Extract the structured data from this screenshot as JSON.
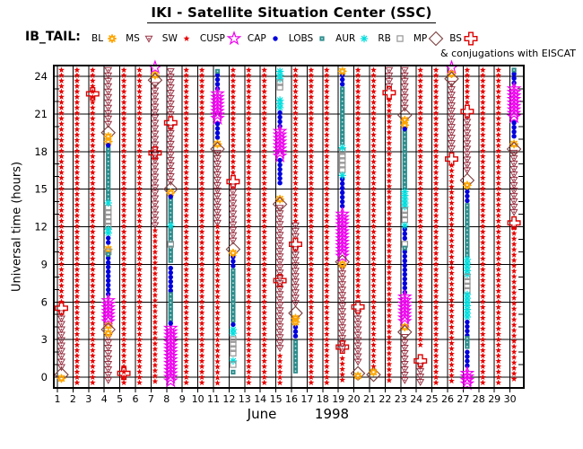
{
  "title": "IKI - Satellite Situation Center (SSC)",
  "legend": {
    "group_label": "IB_TAIL:",
    "note": "& conjugations with EISCAT",
    "items": [
      {
        "label": "BL",
        "key": "BL"
      },
      {
        "label": "MS",
        "key": "MS"
      },
      {
        "label": "SW",
        "key": "SW"
      },
      {
        "label": "CUSP",
        "key": "CUSP"
      },
      {
        "label": "CAP",
        "key": "CAP"
      },
      {
        "label": "LOBS",
        "key": "LOBS"
      },
      {
        "label": "AUR",
        "key": "AUR"
      },
      {
        "label": "RB",
        "key": "RB"
      },
      {
        "label": "MP",
        "key": "MP"
      },
      {
        "label": "BS",
        "key": "BS"
      }
    ]
  },
  "colors": {
    "BL": "#ffa500",
    "MS": "#993344",
    "SW": "#e60000",
    "CUSP": "#ee00ee",
    "CAP": "#0000dd",
    "LOBS": "#2e8b8b",
    "AUR": "#00dddd",
    "RB": "#959595",
    "MP": "#7d4040",
    "BS": "#dd0000",
    "grid": "#000000",
    "lobs_center": "#bfe8e8"
  },
  "chart_data": {
    "type": "scatter",
    "title": "IKI - Satellite Situation Center (SSC)",
    "xlabel_month": "June",
    "xlabel_year": "1998",
    "ylabel": "Universal time (hours)",
    "x_ticks": [
      1,
      2,
      3,
      4,
      5,
      6,
      7,
      8,
      9,
      10,
      11,
      12,
      13,
      14,
      15,
      16,
      17,
      18,
      19,
      20,
      21,
      22,
      23,
      24,
      25,
      26,
      27,
      28,
      29,
      30
    ],
    "y_ticks": [
      0,
      3,
      6,
      9,
      12,
      15,
      18,
      21,
      24
    ],
    "ylim": [
      -0.9,
      24.9
    ],
    "grid": true,
    "legend_position": "top",
    "series_note": "Per day-of-June-1998 region segments: [region, start_hour, end_hour] = symbol run, [region, hour] = single marker",
    "days": [
      {
        "day": 1,
        "segments": [
          [
            "SW",
            24.5,
            5.9
          ],
          [
            "MS",
            5.1,
            0.5
          ],
          [
            "BS",
            5.5
          ],
          [
            "MP",
            0.2
          ],
          [
            "BL",
            -0.1
          ]
        ]
      },
      {
        "day": 2,
        "segments": [
          [
            "SW",
            24.5,
            -0.5
          ]
        ]
      },
      {
        "day": 3,
        "segments": [
          [
            "SW",
            24.5,
            -0.5
          ],
          [
            "BS",
            22.6
          ]
        ]
      },
      {
        "day": 4,
        "segments": [
          [
            "MS",
            24.5,
            19.8
          ],
          [
            "MP",
            19.5
          ],
          [
            "BL",
            19.2
          ],
          [
            "BL",
            18.8
          ],
          [
            "CAP",
            18.5
          ],
          [
            "LOBS",
            18.2,
            14.2
          ],
          [
            "AUR",
            13.9
          ],
          [
            "RB",
            13.5,
            12.0
          ],
          [
            "AUR",
            11.8,
            11.4
          ],
          [
            "CAP",
            11.1,
            10.5
          ],
          [
            "BL",
            10.2
          ],
          [
            "RB",
            10.0
          ],
          [
            "LOBS",
            9.8
          ],
          [
            "CAP",
            9.5,
            6.4
          ],
          [
            "CUSP",
            6.1,
            4.4
          ],
          [
            "BL",
            4.1
          ],
          [
            "MP",
            3.8
          ],
          [
            "BL",
            3.5
          ],
          [
            "MS",
            3.2,
            -0.4
          ]
        ]
      },
      {
        "day": 5,
        "segments": [
          [
            "SW",
            24.5,
            -0.5
          ],
          [
            "BS",
            0.3
          ]
        ]
      },
      {
        "day": 6,
        "segments": [
          [
            "SW",
            24.5,
            -0.5
          ]
        ]
      },
      {
        "day": 7,
        "segments": [
          [
            "MS",
            23.3,
            12.1
          ],
          [
            "SW",
            11.7,
            -0.5
          ],
          [
            "CUSP",
            24.7
          ],
          [
            "BL",
            24.1
          ],
          [
            "MP",
            23.7
          ],
          [
            "BS",
            17.9
          ]
        ]
      },
      {
        "day": 8,
        "segments": [
          [
            "MS",
            24.4,
            20.7
          ],
          [
            "MS",
            19.9,
            15.3
          ],
          [
            "BS",
            20.3
          ],
          [
            "MP",
            15.0
          ],
          [
            "BL",
            14.7
          ],
          [
            "CAP",
            14.4
          ],
          [
            "LOBS",
            14.1,
            12.4
          ],
          [
            "AUR",
            12.1
          ],
          [
            "LOBS",
            11.9,
            10.9
          ],
          [
            "RB",
            10.6
          ],
          [
            "LOBS",
            10.3,
            9.0
          ],
          [
            "CAP",
            8.7,
            6.9
          ],
          [
            "LOBS",
            6.6,
            4.6
          ],
          [
            "CAP",
            4.3
          ],
          [
            "CUSP",
            3.9,
            -0.4
          ]
        ]
      },
      {
        "day": 9,
        "segments": [
          [
            "SW",
            24.5,
            -0.5
          ]
        ]
      },
      {
        "day": 10,
        "segments": [
          [
            "SW",
            24.5,
            -0.5
          ]
        ]
      },
      {
        "day": 11,
        "segments": [
          [
            "LOBS",
            24.4
          ],
          [
            "CAP",
            24.1,
            22.9
          ],
          [
            "CUSP",
            22.6,
            20.5
          ],
          [
            "CAP",
            20.2,
            18.9
          ],
          [
            "BL",
            18.6
          ],
          [
            "MP",
            18.2
          ],
          [
            "MS",
            17.9,
            12.3
          ],
          [
            "SW",
            12.0,
            -0.5
          ]
        ]
      },
      {
        "day": 12,
        "segments": [
          [
            "SW",
            24.5,
            16.0
          ],
          [
            "BS",
            15.6
          ],
          [
            "MS",
            15.2,
            10.6
          ],
          [
            "MP",
            10.2
          ],
          [
            "BL",
            9.9
          ],
          [
            "CAP",
            9.6,
            8.8
          ],
          [
            "LOBS",
            8.5,
            4.5
          ],
          [
            "CAP",
            4.2
          ],
          [
            "AUR",
            3.8,
            3.3
          ],
          [
            "RB",
            3.0,
            1.6
          ],
          [
            "AUR",
            1.3
          ],
          [
            "RB",
            1.0
          ],
          [
            "LOBS",
            0.4
          ]
        ]
      },
      {
        "day": 13,
        "segments": [
          [
            "SW",
            24.5,
            -0.5
          ]
        ]
      },
      {
        "day": 14,
        "segments": [
          [
            "SW",
            24.5,
            -0.5
          ]
        ]
      },
      {
        "day": 15,
        "segments": [
          [
            "AUR",
            24.4,
            23.8
          ],
          [
            "RB",
            23.5,
            22.9
          ],
          [
            "AUR",
            22.1,
            21.5
          ],
          [
            "CAP",
            21.1,
            19.9
          ],
          [
            "CUSP",
            19.6,
            17.6
          ],
          [
            "CAP",
            17.3,
            15.4
          ],
          [
            "BL",
            14.2
          ],
          [
            "MP",
            13.8
          ],
          [
            "MS",
            13.5,
            2.1
          ],
          [
            "BS",
            7.7
          ],
          [
            "SW",
            1.7,
            -0.5
          ]
        ]
      },
      {
        "day": 16,
        "segments": [
          [
            "SW",
            24.5,
            12.4
          ],
          [
            "MS",
            12.1,
            11.0
          ],
          [
            "BS",
            10.6
          ],
          [
            "MS",
            10.2,
            5.5
          ],
          [
            "MP",
            5.1
          ],
          [
            "BL",
            4.7
          ],
          [
            "BL",
            4.4
          ],
          [
            "CAP",
            4.0,
            3.1
          ],
          [
            "LOBS",
            2.8,
            0.2
          ]
        ]
      },
      {
        "day": 17,
        "segments": [
          [
            "SW",
            24.5,
            -0.5
          ]
        ]
      },
      {
        "day": 18,
        "segments": [
          [
            "SW",
            24.5,
            -0.5
          ]
        ]
      },
      {
        "day": 19,
        "segments": [
          [
            "BL",
            24.4
          ],
          [
            "CAP",
            24.1,
            23.3
          ],
          [
            "LOBS",
            23.0,
            18.6
          ],
          [
            "AUR",
            18.3
          ],
          [
            "RB",
            18.0,
            16.4
          ],
          [
            "AUR",
            16.1
          ],
          [
            "CAP",
            15.8,
            13.3
          ],
          [
            "CUSP",
            13.0,
            9.6
          ],
          [
            "MP",
            9.2
          ],
          [
            "BL",
            9.0
          ],
          [
            "MS",
            8.7,
            1.9
          ],
          [
            "BS",
            2.4
          ],
          [
            "SW",
            1.5,
            -0.5
          ]
        ]
      },
      {
        "day": 20,
        "segments": [
          [
            "SW",
            24.5,
            6.1
          ],
          [
            "BS",
            5.6
          ],
          [
            "MS",
            5.1,
            0.9
          ],
          [
            "MP",
            0.3
          ],
          [
            "BL",
            0.1
          ]
        ]
      },
      {
        "day": 21,
        "segments": [
          [
            "SW",
            24.5,
            0.7
          ],
          [
            "MP",
            0.2
          ],
          [
            "BL",
            0.4
          ]
        ]
      },
      {
        "day": 22,
        "segments": [
          [
            "MS",
            24.5,
            23.2
          ],
          [
            "BS",
            22.7
          ],
          [
            "SW",
            22.1,
            -0.5
          ]
        ]
      },
      {
        "day": 23,
        "segments": [
          [
            "MS",
            24.5,
            21.3
          ],
          [
            "MP",
            20.9
          ],
          [
            "BL",
            20.5
          ],
          [
            "BL",
            20.1
          ],
          [
            "CAP",
            19.8
          ],
          [
            "LOBS",
            19.5,
            15.1
          ],
          [
            "AUR",
            14.8,
            13.6
          ],
          [
            "RB",
            13.3,
            12.4
          ],
          [
            "AUR",
            12.1
          ],
          [
            "CAP",
            11.8,
            10.9
          ],
          [
            "RB",
            10.6
          ],
          [
            "LOBS",
            10.3
          ],
          [
            "CAP",
            10.0,
            6.7
          ],
          [
            "CUSP",
            6.4,
            4.3
          ],
          [
            "BL",
            4.0
          ],
          [
            "MP",
            3.6
          ],
          [
            "MS",
            3.2,
            -0.4
          ]
        ]
      },
      {
        "day": 24,
        "segments": [
          [
            "SW",
            24.5,
            2.3
          ],
          [
            "MS",
            0.9,
            -0.4
          ],
          [
            "BS",
            1.3
          ]
        ]
      },
      {
        "day": 25,
        "segments": [
          [
            "SW",
            24.5,
            -0.5
          ]
        ]
      },
      {
        "day": 26,
        "segments": [
          [
            "MS",
            23.4,
            18.0
          ],
          [
            "SW",
            16.9,
            -0.5
          ],
          [
            "CUSP",
            24.7
          ],
          [
            "BL",
            24.2
          ],
          [
            "MP",
            23.8
          ],
          [
            "BS",
            17.4
          ]
        ]
      },
      {
        "day": 27,
        "segments": [
          [
            "SW",
            24.5,
            21.7
          ],
          [
            "BS",
            21.2
          ],
          [
            "MS",
            20.8,
            16.2
          ],
          [
            "MP",
            15.7
          ],
          [
            "BL",
            15.3
          ],
          [
            "CAP",
            14.8,
            14.0
          ],
          [
            "LOBS",
            13.7,
            9.6
          ],
          [
            "AUR",
            9.4,
            8.2
          ],
          [
            "RB",
            8.0,
            6.8
          ],
          [
            "AUR",
            6.6,
            4.6
          ],
          [
            "CAP",
            4.4,
            3.3
          ],
          [
            "LOBS",
            3.1,
            2.2
          ],
          [
            "CAP",
            2.0,
            0.6
          ],
          [
            "CUSP",
            0.3,
            -0.6
          ]
        ]
      },
      {
        "day": 28,
        "segments": [
          [
            "SW",
            24.5,
            -0.5
          ]
        ]
      },
      {
        "day": 29,
        "segments": [
          [
            "SW",
            24.5,
            -0.5
          ]
        ]
      },
      {
        "day": 30,
        "segments": [
          [
            "LOBS",
            24.5
          ],
          [
            "CAP",
            24.2,
            23.3
          ],
          [
            "CUSP",
            23.0,
            20.6
          ],
          [
            "CAP",
            20.3,
            18.9
          ],
          [
            "BL",
            18.6
          ],
          [
            "MP",
            18.2
          ],
          [
            "MS",
            17.9,
            12.9
          ],
          [
            "BS",
            12.3
          ],
          [
            "SW",
            11.9,
            -0.5
          ]
        ]
      }
    ]
  }
}
